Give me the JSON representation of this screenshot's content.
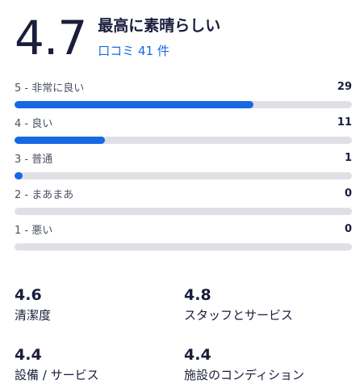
{
  "overall": {
    "score": "4.7",
    "label": "最高に素晴らしい",
    "reviews_link": "口コミ 41 件"
  },
  "breakdown": [
    {
      "label": "5 - 非常に良い",
      "count": "29",
      "fraction": 0.707
    },
    {
      "label": "4 - 良い",
      "count": "11",
      "fraction": 0.268
    },
    {
      "label": "3 - 普通",
      "count": "1",
      "fraction": 0.024
    },
    {
      "label": "2 - まあまあ",
      "count": "0",
      "fraction": 0
    },
    {
      "label": "1 - 悪い",
      "count": "0",
      "fraction": 0
    }
  ],
  "subscores": [
    {
      "value": "4.6",
      "label": "清潔度"
    },
    {
      "value": "4.8",
      "label": "スタッフとサービス"
    },
    {
      "value": "4.4",
      "label": "設備 / サービス"
    },
    {
      "value": "4.4",
      "label": "施設のコンディション"
    }
  ],
  "colors": {
    "accent": "#1668e3",
    "bar_track": "#dfe0e4",
    "text": "#191e3b"
  }
}
